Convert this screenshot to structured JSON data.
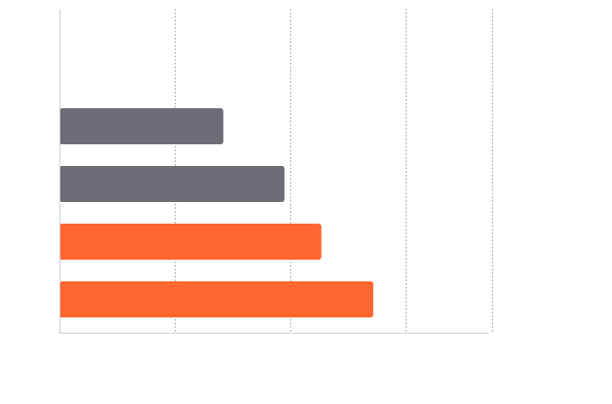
{
  "chart_data": {
    "type": "bar",
    "orientation": "horizontal",
    "categories": [
      "",
      "",
      "",
      ""
    ],
    "values": [
      1.42,
      1.95,
      2.27,
      2.72
    ],
    "xlim": [
      0,
      3.75
    ],
    "grid": true,
    "legend": "none",
    "colors": [
      "#6e6d76",
      "#6e6d76",
      "#ff6630",
      "#ff6630"
    ],
    "grid_color": "#999999",
    "axis_color": "#cccccc"
  }
}
